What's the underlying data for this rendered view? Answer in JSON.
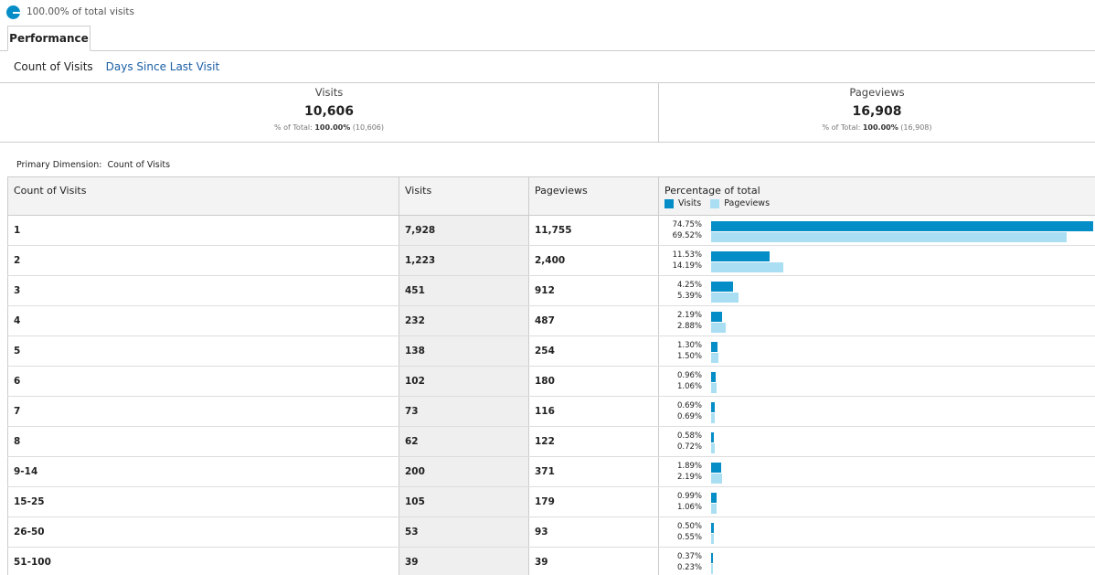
{
  "segment": {
    "label": "100.00% of total visits",
    "color": "#058dc7"
  },
  "tabs": [
    {
      "label": "Performance"
    }
  ],
  "subnav": {
    "current": "Count of Visits",
    "link": "Days Since Last Visit"
  },
  "scorecards": [
    {
      "label": "Visits",
      "value": "10,606",
      "sub_prefix": "% of Total:",
      "sub_pct": "100.00%",
      "sub_total": "(10,606)"
    },
    {
      "label": "Pageviews",
      "value": "16,908",
      "sub_prefix": "% of Total:",
      "sub_pct": "100.00%",
      "sub_total": "(16,908)"
    }
  ],
  "primary_dimension": {
    "label": "Primary Dimension:",
    "value": "Count of Visits"
  },
  "table": {
    "headers": {
      "dimension": "Count of Visits",
      "visits": "Visits",
      "pageviews": "Pageviews",
      "percentage": "Percentage of total"
    },
    "legend": {
      "visits": "Visits",
      "pageviews": "Pageviews",
      "visits_color": "#058dc7",
      "pageviews_color": "#aadff3"
    },
    "rows": [
      {
        "dimension": "1",
        "visits": "7,928",
        "pageviews": "11,755",
        "visits_pct": "74.75%",
        "pageviews_pct": "69.52%"
      },
      {
        "dimension": "2",
        "visits": "1,223",
        "pageviews": "2,400",
        "visits_pct": "11.53%",
        "pageviews_pct": "14.19%"
      },
      {
        "dimension": "3",
        "visits": "451",
        "pageviews": "912",
        "visits_pct": "4.25%",
        "pageviews_pct": "5.39%"
      },
      {
        "dimension": "4",
        "visits": "232",
        "pageviews": "487",
        "visits_pct": "2.19%",
        "pageviews_pct": "2.88%"
      },
      {
        "dimension": "5",
        "visits": "138",
        "pageviews": "254",
        "visits_pct": "1.30%",
        "pageviews_pct": "1.50%"
      },
      {
        "dimension": "6",
        "visits": "102",
        "pageviews": "180",
        "visits_pct": "0.96%",
        "pageviews_pct": "1.06%"
      },
      {
        "dimension": "7",
        "visits": "73",
        "pageviews": "116",
        "visits_pct": "0.69%",
        "pageviews_pct": "0.69%"
      },
      {
        "dimension": "8",
        "visits": "62",
        "pageviews": "122",
        "visits_pct": "0.58%",
        "pageviews_pct": "0.72%"
      },
      {
        "dimension": "9-14",
        "visits": "200",
        "pageviews": "371",
        "visits_pct": "1.89%",
        "pageviews_pct": "2.19%"
      },
      {
        "dimension": "15-25",
        "visits": "105",
        "pageviews": "179",
        "visits_pct": "0.99%",
        "pageviews_pct": "1.06%"
      },
      {
        "dimension": "26-50",
        "visits": "53",
        "pageviews": "93",
        "visits_pct": "0.50%",
        "pageviews_pct": "0.55%"
      },
      {
        "dimension": "51-100",
        "visits": "39",
        "pageviews": "39",
        "visits_pct": "0.37%",
        "pageviews_pct": "0.23%"
      }
    ]
  }
}
